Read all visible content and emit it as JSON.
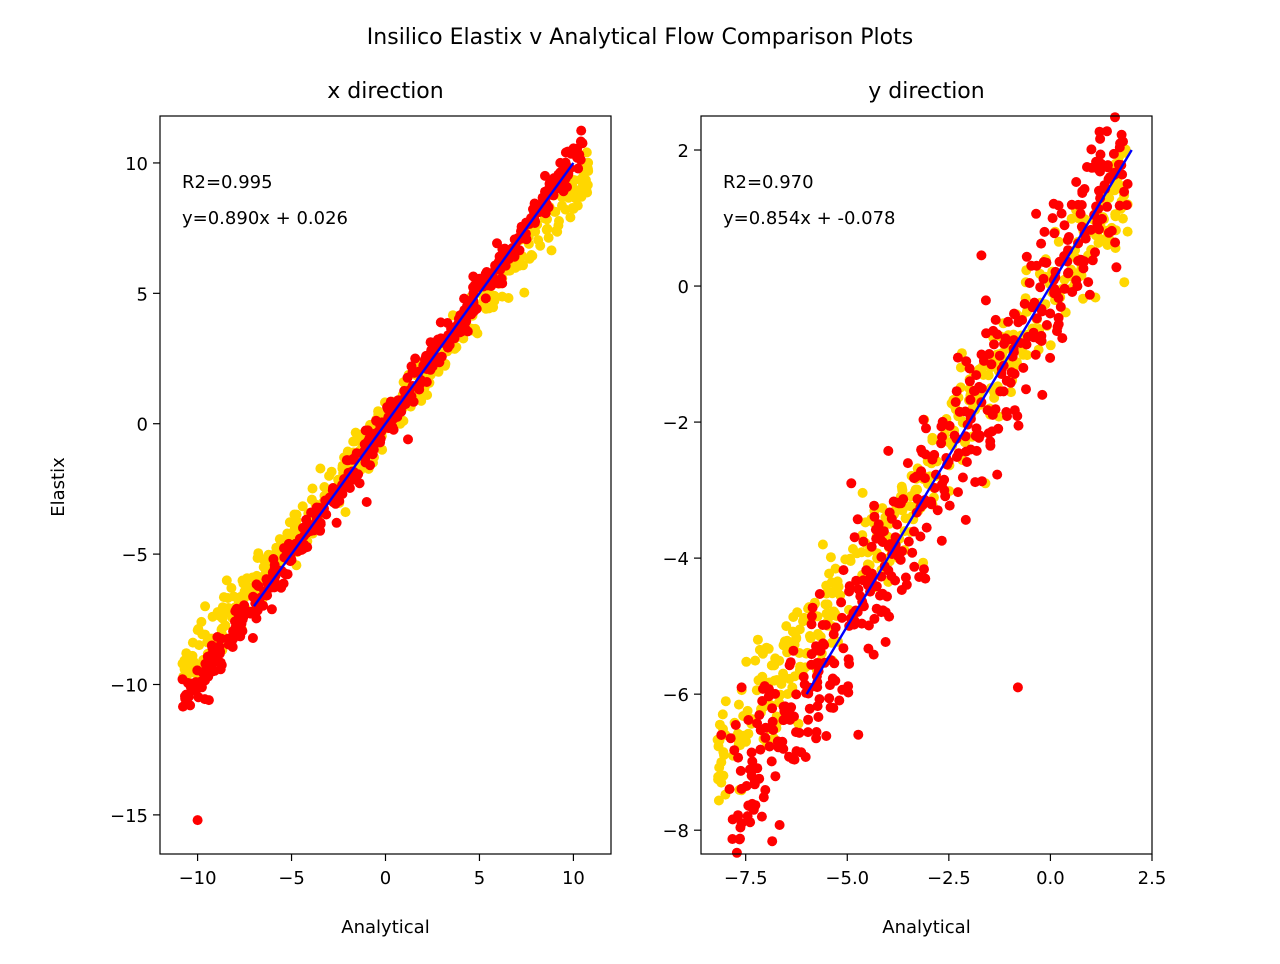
{
  "figure": {
    "title": "Insilico Elastix v Analytical Flow Comparison Plots"
  },
  "colors": {
    "series_a": "#FFD700",
    "series_b": "#FF0000",
    "fit_line": "#0000FF",
    "axes": "#000000"
  },
  "chart_data": [
    {
      "type": "scatter",
      "title": "x direction",
      "xlabel": "Analytical",
      "ylabel": "Elastix",
      "xlim": [
        -12,
        12
      ],
      "ylim": [
        -16.5,
        11.8
      ],
      "xticks": [
        -10,
        -5,
        0,
        5,
        10
      ],
      "xtick_labels": [
        "−10",
        "−5",
        "0",
        "5",
        "10"
      ],
      "yticks": [
        -15,
        -10,
        -5,
        0,
        5,
        10
      ],
      "ytick_labels": [
        "−15",
        "−10",
        "−5",
        "0",
        "5",
        "10"
      ],
      "annotations": [
        "R2=0.995",
        "y=0.890x + 0.026"
      ],
      "fit": {
        "slope": 0.89,
        "intercept": 0.026,
        "x_range": [
          -7,
          10
        ],
        "y_range": [
          -7,
          10
        ]
      },
      "series": [
        {
          "color": "yellow",
          "trend": {
            "slope": 0.89,
            "intercept": 0.026,
            "x_range": [
              -10.8,
              10.8
            ],
            "noise": 0.45,
            "count": 420
          },
          "points": [
            [
              10.7,
              8.9
            ],
            [
              10.5,
              9.1
            ],
            [
              -10.8,
              -9.2
            ],
            [
              -10.6,
              -8.8
            ],
            [
              -9.6,
              -7.0
            ],
            [
              -9.2,
              -7.4
            ],
            [
              -8.2,
              -6.3
            ],
            [
              -6.5,
              -5.2
            ],
            [
              -3.0,
              -2.0
            ],
            [
              -1.2,
              -0.7
            ],
            [
              1.0,
              1.2
            ],
            [
              9.2,
              7.6
            ]
          ]
        },
        {
          "color": "red",
          "trend": {
            "slope": 1.0,
            "intercept": 0.0,
            "x_range": [
              -10.8,
              10.5
            ],
            "noise": 0.35,
            "count": 480
          },
          "points": [
            [
              -10.0,
              -15.2
            ],
            [
              -1.0,
              -3.0
            ],
            [
              -10.8,
              -9.8
            ],
            [
              -10.4,
              -10.8
            ],
            [
              -9.4,
              -10.6
            ],
            [
              2.2,
              1.6
            ],
            [
              1.2,
              -0.6
            ],
            [
              9.6,
              10.4
            ],
            [
              10.2,
              10.2
            ],
            [
              -2.6,
              -3.8
            ]
          ]
        }
      ]
    },
    {
      "type": "scatter",
      "title": "y direction",
      "xlabel": "Analytical",
      "ylabel": "",
      "xlim": [
        -8.6,
        2.5
      ],
      "ylim": [
        -8.35,
        2.5
      ],
      "xticks": [
        -7.5,
        -5.0,
        -2.5,
        0.0,
        2.5
      ],
      "xtick_labels": [
        "−7.5",
        "−5.0",
        "−2.5",
        "0.0",
        "2.5"
      ],
      "yticks": [
        -8,
        -6,
        -4,
        -2,
        0,
        2
      ],
      "ytick_labels": [
        "−8",
        "−6",
        "−4",
        "−2",
        "0",
        "2"
      ],
      "annotations": [
        "R2=0.970",
        "y=0.854x + -0.078"
      ],
      "fit": {
        "slope": 0.854,
        "intercept": -0.078,
        "x_range": [
          -6,
          2
        ],
        "y_range": [
          -6,
          2
        ]
      },
      "series": [
        {
          "color": "yellow",
          "trend": {
            "slope": 0.854,
            "intercept": -0.078,
            "x_range": [
              -8.2,
              1.9
            ],
            "noise": 0.4,
            "count": 420
          },
          "points": [
            [
              -8.1,
              -7.0
            ],
            [
              -8.1,
              -7.3
            ],
            [
              -7.2,
              -5.2
            ],
            [
              -6.5,
              -5.0
            ],
            [
              1.9,
              1.2
            ],
            [
              1.9,
              0.8
            ],
            [
              -1.6,
              -2.9
            ],
            [
              -5.6,
              -3.8
            ],
            [
              -8.0,
              -6.6
            ]
          ]
        },
        {
          "color": "red",
          "trend": {
            "slope": 1.0,
            "intercept": 0.0,
            "x_range": [
              -7.9,
              1.9
            ],
            "noise": 0.55,
            "count": 480
          },
          "points": [
            [
              -0.8,
              -5.9
            ],
            [
              -7.6,
              -7.9
            ],
            [
              -7.1,
              -7.8
            ],
            [
              -7.6,
              -5.9
            ],
            [
              -8.1,
              -6.6
            ],
            [
              -1.7,
              0.45
            ],
            [
              0.9,
              1.75
            ],
            [
              1.9,
              1.5
            ],
            [
              -0.2,
              -1.6
            ],
            [
              -4.9,
              -2.9
            ],
            [
              -6.6,
              -6.7
            ],
            [
              -7.3,
              -7.7
            ]
          ]
        }
      ]
    }
  ]
}
